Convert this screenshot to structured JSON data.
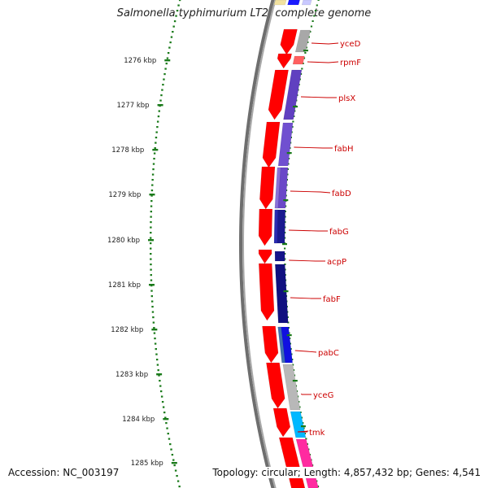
{
  "title": "Salmonella typhimurium LT2, complete genome",
  "footer": {
    "accession": "Accession: NC_003197",
    "topology": "Topology: circular; Length: 4,857,432 bp; Genes: 4,541"
  },
  "colors": {
    "backbone": "#777777",
    "forward_cds": "#ff0000",
    "tick_outer": "#1a7a1a",
    "label_red": "#cc0000",
    "label_dark": "#222222"
  },
  "kbp_ticks": [
    "1276 kbp",
    "1277 kbp",
    "1278 kbp",
    "1279 kbp",
    "1280 kbp",
    "1281 kbp",
    "1282 kbp",
    "1283 kbp",
    "1284 kbp",
    "1285 kbp"
  ],
  "genes": [
    "yceD",
    "rpmF",
    "plsX",
    "fabH",
    "fabD",
    "fabG",
    "acpP",
    "fabF",
    "pabC",
    "yceG",
    "tmk"
  ]
}
